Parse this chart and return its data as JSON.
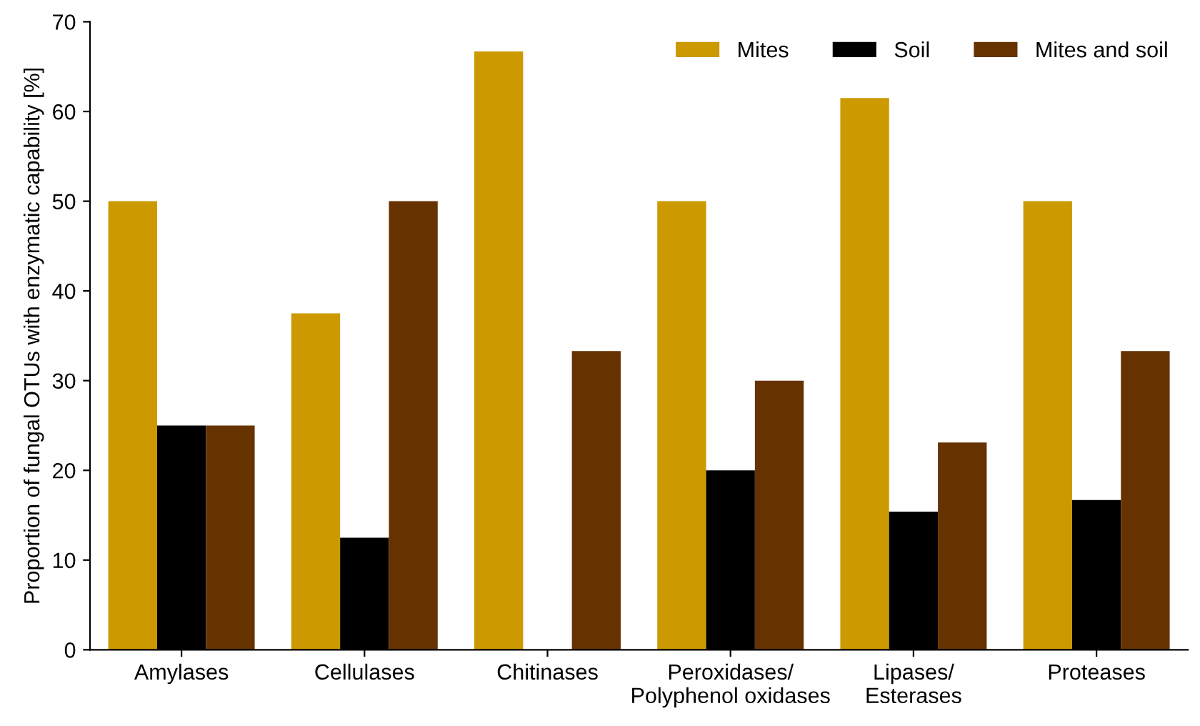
{
  "chart_data": {
    "type": "bar",
    "ylabel": "Proportion of fungal OTUs with enzymatic capability [%]",
    "categories": [
      "Amylases",
      "Cellulases",
      "Chitinases",
      "Peroxidases/\nPolyphenol oxidases",
      "Lipases/\nEsterases",
      "Proteases"
    ],
    "series": [
      {
        "name": "Mites",
        "color": "#cc9900",
        "values": [
          50,
          37.5,
          66.7,
          50,
          61.5,
          50
        ]
      },
      {
        "name": "Soil",
        "color": "#000000",
        "values": [
          25,
          12.5,
          0,
          20,
          15.4,
          16.7
        ]
      },
      {
        "name": "Mites and soil",
        "color": "#663300",
        "values": [
          25,
          50,
          33.3,
          30,
          23.1,
          33.3
        ]
      }
    ],
    "ylim": [
      0,
      70
    ],
    "yticks": [
      0,
      10,
      20,
      30,
      40,
      50,
      60,
      70
    ],
    "grid": false,
    "legend": "top right"
  }
}
